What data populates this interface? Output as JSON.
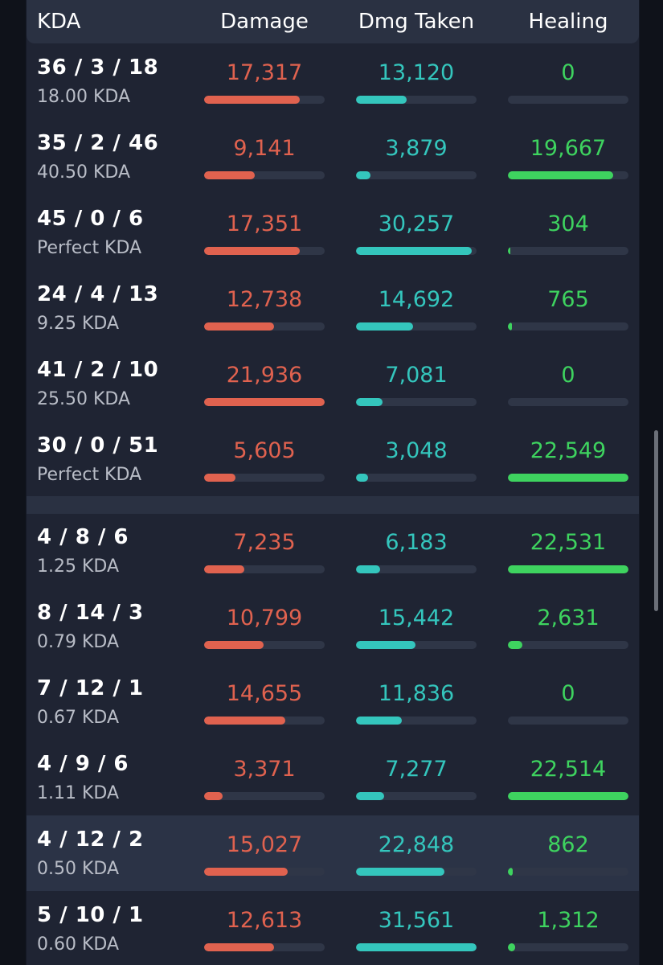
{
  "colors": {
    "damage": "#e0624f",
    "taken": "#34c6bd",
    "healing": "#3ed35f"
  },
  "header": {
    "kda": "KDA",
    "damage": "Damage",
    "dmg_taken": "Dmg Taken",
    "healing": "Healing"
  },
  "rows": [
    {
      "kda": "36 / 3 / 18",
      "ratio": "18.00 KDA",
      "damage": "17,317",
      "damage_pct": 0.79,
      "taken": "13,120",
      "taken_pct": 0.42,
      "healing": "0",
      "healing_pct": 0
    },
    {
      "kda": "35 / 2 / 46",
      "ratio": "40.50 KDA",
      "damage": "9,141",
      "damage_pct": 0.42,
      "taken": "3,879",
      "taken_pct": 0.12,
      "healing": "19,667",
      "healing_pct": 0.87
    },
    {
      "kda": "45 / 0 / 6",
      "ratio": "Perfect KDA",
      "damage": "17,351",
      "damage_pct": 0.79,
      "taken": "30,257",
      "taken_pct": 0.96,
      "healing": "304",
      "healing_pct": 0.013
    },
    {
      "kda": "24 / 4 / 13",
      "ratio": "9.25 KDA",
      "damage": "12,738",
      "damage_pct": 0.58,
      "taken": "14,692",
      "taken_pct": 0.47,
      "healing": "765",
      "healing_pct": 0.034
    },
    {
      "kda": "41 / 2 / 10",
      "ratio": "25.50 KDA",
      "damage": "21,936",
      "damage_pct": 1.0,
      "taken": "7,081",
      "taken_pct": 0.22,
      "healing": "0",
      "healing_pct": 0
    },
    {
      "kda": "30 / 0 / 51",
      "ratio": "Perfect KDA",
      "damage": "5,605",
      "damage_pct": 0.26,
      "taken": "3,048",
      "taken_pct": 0.1,
      "healing": "22,549",
      "healing_pct": 1.0
    },
    {
      "kda": "4 / 8 / 6",
      "ratio": "1.25 KDA",
      "damage": "7,235",
      "damage_pct": 0.33,
      "taken": "6,183",
      "taken_pct": 0.2,
      "healing": "22,531",
      "healing_pct": 1.0
    },
    {
      "kda": "8 / 14 / 3",
      "ratio": "0.79 KDA",
      "damage": "10,799",
      "damage_pct": 0.49,
      "taken": "15,442",
      "taken_pct": 0.49,
      "healing": "2,631",
      "healing_pct": 0.12
    },
    {
      "kda": "7 / 12 / 1",
      "ratio": "0.67 KDA",
      "damage": "14,655",
      "damage_pct": 0.67,
      "taken": "11,836",
      "taken_pct": 0.38,
      "healing": "0",
      "healing_pct": 0
    },
    {
      "kda": "4 / 9 / 6",
      "ratio": "1.11 KDA",
      "damage": "3,371",
      "damage_pct": 0.15,
      "taken": "7,277",
      "taken_pct": 0.23,
      "healing": "22,514",
      "healing_pct": 1.0
    },
    {
      "kda": "4 / 12 / 2",
      "ratio": "0.50 KDA",
      "damage": "15,027",
      "damage_pct": 0.69,
      "taken": "22,848",
      "taken_pct": 0.73,
      "healing": "862",
      "healing_pct": 0.04,
      "highlight": true
    },
    {
      "kda": "5 / 10 / 1",
      "ratio": "0.60 KDA",
      "damage": "12,613",
      "damage_pct": 0.58,
      "taken": "31,561",
      "taken_pct": 1.0,
      "healing": "1,312",
      "healing_pct": 0.06
    }
  ]
}
